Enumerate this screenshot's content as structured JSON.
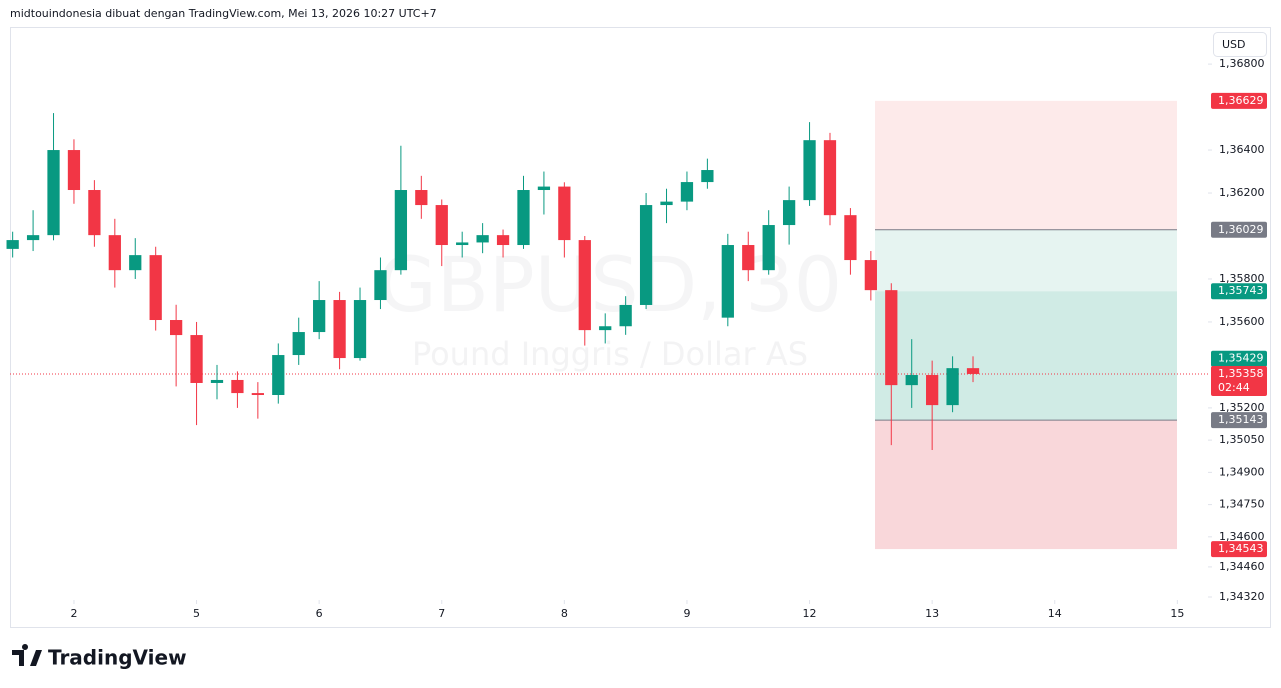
{
  "header": "midtouindonesia dibuat dengan TradingView.com, Mei 13, 2026 10:27 UTC+7",
  "logo": "TradingView",
  "chart_data": {
    "type": "candlestick",
    "watermark_symbol": "GBPUSD, 30",
    "watermark_description": "Pound Inggris / Dollar AS",
    "currency": "USD",
    "x": [
      0,
      1,
      2,
      3,
      4,
      5,
      6,
      7,
      8,
      9,
      10,
      11,
      12,
      13,
      14,
      15,
      16,
      17,
      18,
      19,
      20,
      21,
      22,
      23,
      24,
      25,
      26,
      27,
      28,
      29,
      30,
      31,
      32,
      33,
      34,
      35,
      36,
      37,
      38,
      39,
      40,
      41,
      42,
      43,
      44,
      45,
      46,
      47
    ],
    "open": [
      1.3594,
      1.35981,
      1.36004,
      1.364,
      1.36214,
      1.36004,
      1.35841,
      1.35911,
      1.35609,
      1.35539,
      1.35316,
      1.3533,
      1.35269,
      1.3526,
      1.35446,
      1.35553,
      1.35702,
      1.35432,
      1.35702,
      1.35841,
      1.36214,
      1.36144,
      1.35958,
      1.3597,
      1.36004,
      1.35958,
      1.36214,
      1.3623,
      1.35981,
      1.35562,
      1.3558,
      1.35679,
      1.36144,
      1.3616,
      1.36251,
      1.3562,
      1.35958,
      1.35841,
      1.36051,
      1.36167,
      1.36446,
      1.36097,
      1.35888,
      1.35748,
      1.35306,
      1.35353,
      1.35213,
      1.35385
    ],
    "high": [
      1.3602,
      1.3612,
      1.36572,
      1.3645,
      1.3626,
      1.3608,
      1.3599,
      1.3595,
      1.3568,
      1.356,
      1.354,
      1.3537,
      1.3532,
      1.355,
      1.3562,
      1.3579,
      1.3574,
      1.3576,
      1.359,
      1.3642,
      1.3628,
      1.3617,
      1.3602,
      1.3606,
      1.3603,
      1.3628,
      1.363,
      1.3625,
      1.36,
      1.3564,
      1.3572,
      1.362,
      1.3622,
      1.363,
      1.3636,
      1.3601,
      1.3602,
      1.3612,
      1.3623,
      1.3653,
      1.3648,
      1.3613,
      1.3593,
      1.3578,
      1.3552,
      1.3542,
      1.3544,
      1.3544
    ],
    "low": [
      1.359,
      1.3593,
      1.3598,
      1.3615,
      1.3595,
      1.3576,
      1.358,
      1.3556,
      1.353,
      1.3512,
      1.3524,
      1.352,
      1.3515,
      1.3522,
      1.354,
      1.3552,
      1.3538,
      1.3542,
      1.3566,
      1.3582,
      1.3608,
      1.3586,
      1.359,
      1.3592,
      1.359,
      1.3594,
      1.361,
      1.359,
      1.3549,
      1.355,
      1.3554,
      1.3566,
      1.3606,
      1.3612,
      1.3622,
      1.3558,
      1.3579,
      1.3582,
      1.3596,
      1.3614,
      1.3605,
      1.3582,
      1.357,
      1.35027,
      1.352,
      1.35004,
      1.3518,
      1.3532
    ],
    "close": [
      1.35981,
      1.36004,
      1.364,
      1.36214,
      1.36004,
      1.35841,
      1.35911,
      1.35609,
      1.35539,
      1.35316,
      1.3533,
      1.35269,
      1.3526,
      1.35446,
      1.35553,
      1.35702,
      1.35432,
      1.35702,
      1.35841,
      1.36214,
      1.36144,
      1.35958,
      1.3597,
      1.36004,
      1.35958,
      1.36214,
      1.3623,
      1.35981,
      1.35562,
      1.3558,
      1.35679,
      1.36144,
      1.3616,
      1.36251,
      1.36307,
      1.35958,
      1.35841,
      1.36051,
      1.36167,
      1.36446,
      1.36097,
      1.35888,
      1.35748,
      1.35306,
      1.35353,
      1.35213,
      1.35385,
      1.35358
    ],
    "up_color": "#089981",
    "down_color": "#f23645",
    "xlim": [
      -0.13,
      58.5
    ],
    "xticks": [
      {
        "value": 3,
        "label": "2"
      },
      {
        "value": 9,
        "label": "5"
      },
      {
        "value": 15,
        "label": "6"
      },
      {
        "value": 21,
        "label": "7"
      },
      {
        "value": 27,
        "label": "8"
      },
      {
        "value": 33,
        "label": "9"
      },
      {
        "value": 39,
        "label": "12"
      },
      {
        "value": 45,
        "label": "13"
      },
      {
        "value": 51,
        "label": "14"
      },
      {
        "value": 57,
        "label": "15"
      }
    ],
    "ylim": [
      1.34306,
      1.36968
    ],
    "yticks": [
      {
        "value": 1.368,
        "label": "1,36800"
      },
      {
        "value": 1.364,
        "label": "1,36400"
      },
      {
        "value": 1.362,
        "label": "1,36200"
      },
      {
        "value": 1.358,
        "label": "1,35800"
      },
      {
        "value": 1.356,
        "label": "1,35600"
      },
      {
        "value": 1.352,
        "label": "1,35200"
      },
      {
        "value": 1.3505,
        "label": "1,35050"
      },
      {
        "value": 1.349,
        "label": "1,34900"
      },
      {
        "value": 1.3475,
        "label": "1,34750"
      },
      {
        "value": 1.346,
        "label": "1,34600"
      },
      {
        "value": 1.3446,
        "label": "1,34460"
      },
      {
        "value": 1.3432,
        "label": "1,34320"
      }
    ],
    "zones": [
      {
        "from": 1.36629,
        "to": 1.36029,
        "color": "#fdeaea"
      },
      {
        "from": 1.36029,
        "to": 1.35743,
        "color": "#e6f4f1"
      },
      {
        "from": 1.35743,
        "to": 1.35143,
        "color": "#d0ebe5"
      },
      {
        "from": 1.35143,
        "to": 1.34543,
        "color": "#f9d7da"
      }
    ],
    "price_labels": [
      {
        "value": 1.36629,
        "label": "1,36629",
        "color": "#f23645"
      },
      {
        "value": 1.36029,
        "label": "1,36029",
        "color": "#787b86"
      },
      {
        "value": 1.35743,
        "label": "1,35743",
        "color": "#089981"
      },
      {
        "value": 1.35429,
        "label": "1,35429",
        "color": "#089981"
      },
      {
        "value": 1.35143,
        "label": "1,35143",
        "color": "#787b86"
      },
      {
        "value": 1.34543,
        "label": "1,34543",
        "color": "#f23645"
      }
    ],
    "current_price": {
      "value": 1.35358,
      "label": "1,35358",
      "countdown": "02:44",
      "color": "#f23645"
    }
  }
}
